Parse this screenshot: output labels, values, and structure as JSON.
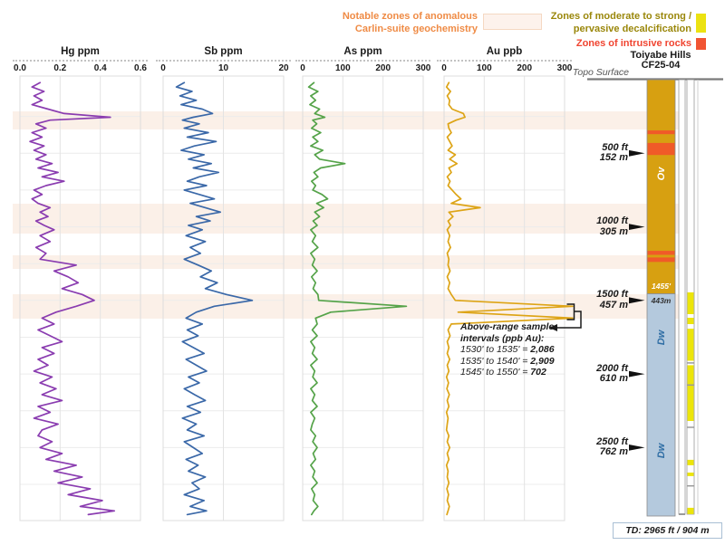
{
  "legend": {
    "carlin": {
      "line1": "Notable zones of anomalous",
      "line2": "Carlin-suite geochemistry",
      "text_color": "#ef8b45",
      "swatch_fill": "#fdf2ec",
      "swatch_border": "#f5d8c2"
    },
    "decalcification": {
      "line1": "Zones of moderate to strong /",
      "line2": "pervasive decalcification",
      "text_color": "#9a870b",
      "swatch_fill": "#ece211"
    },
    "intrusive": {
      "label": "Zones of intrusive rocks",
      "text_color": "#f04430",
      "swatch_fill": "#f15432"
    }
  },
  "hole": {
    "title_line1": "Toiyabe Hills",
    "title_line2": "CF25-04",
    "topo_label": "Topo Surface",
    "td_label": "TD: 2965 ft / 904 m"
  },
  "annotation": {
    "line1": "Above-range sample",
    "line2": "intervals (ppb Au):",
    "entries": [
      {
        "interval": "1530' to 1535' = ",
        "value": "2,086"
      },
      {
        "interval": "1535' to 1540' = ",
        "value": "2,909"
      },
      {
        "interval": "1545' to 1550' = ",
        "value": "702"
      }
    ]
  },
  "depth_markers": [
    {
      "ft": "500 ft",
      "m": "152 m",
      "depth": 500
    },
    {
      "ft": "1000 ft",
      "m": "305 m",
      "depth": 1000
    },
    {
      "ft": "1500 ft",
      "m": "457 m",
      "depth": 1500
    },
    {
      "ft": "2000 ft",
      "m": "610 m",
      "depth": 2000
    },
    {
      "ft": "2500 ft",
      "m": "762 m",
      "depth": 2500
    }
  ],
  "lithology": {
    "units": [
      {
        "code": "Ov",
        "from_ft": 0,
        "to_ft": 1455,
        "color": "#d7a011",
        "label_color": "#ffffff",
        "label_depth": 640
      },
      {
        "code": "Dw",
        "from_ft": 1455,
        "to_ft": 2965,
        "color": "#b4c9dd",
        "label_color": "#2e6da4",
        "label_depth": 1755
      },
      {
        "code": "Dw",
        "from_ft": 1455,
        "to_ft": 2965,
        "color": "#b4c9dd",
        "label_color": "#2e6da4",
        "label_depth": 2520
      }
    ],
    "boundary_label_ft": "1455'",
    "boundary_label_m": "443m",
    "intrusive_intervals_ft": [
      [
        345,
        370
      ],
      [
        430,
        512
      ],
      [
        1163,
        1190
      ],
      [
        1208,
        1238
      ]
    ],
    "intrusive_color": "#f05a28"
  },
  "decal_strip": {
    "yellow_intervals_ft": [
      [
        1445,
        1593
      ],
      [
        1618,
        1661
      ],
      [
        1692,
        1910
      ],
      [
        1940,
        2319
      ],
      [
        2583,
        2620
      ],
      [
        2670,
        2694
      ],
      [
        2909,
        2952
      ]
    ],
    "tick_depths_ft": [
      1925,
      2075,
      2362,
      2760
    ],
    "color": "#ece50a"
  },
  "anomalous_bands_ft": [
    [
      215,
      338
    ],
    [
      843,
      1046
    ],
    [
      1193,
      1286
    ],
    [
      1458,
      1624
    ]
  ],
  "band_color": "#fbf0e8",
  "chart_data": {
    "type": "line",
    "orientation": "vertical-depth-profile",
    "depth_axis": {
      "unit": "ft",
      "min": 0,
      "max": 2965,
      "td_ft": 2965,
      "td_m": 904,
      "gridline_interval_ft": 250
    },
    "sample_depths_ft": [
      20,
      50,
      80,
      110,
      140,
      170,
      200,
      230,
      255,
      275,
      300,
      330,
      360,
      390,
      420,
      450,
      480,
      510,
      540,
      570,
      600,
      630,
      660,
      690,
      720,
      750,
      780,
      810,
      840,
      870,
      900,
      930,
      960,
      990,
      1020,
      1060,
      1100,
      1140,
      1180,
      1220,
      1260,
      1300,
      1340,
      1380,
      1420,
      1460,
      1500,
      1540,
      1580,
      1620,
      1660,
      1700,
      1740,
      1780,
      1820,
      1860,
      1900,
      1940,
      1980,
      2020,
      2060,
      2100,
      2140,
      2180,
      2220,
      2260,
      2300,
      2340,
      2380,
      2420,
      2460,
      2500,
      2540,
      2580,
      2620,
      2660,
      2700,
      2740,
      2780,
      2820,
      2860,
      2900,
      2930,
      2955
    ],
    "panels": [
      {
        "id": "hg",
        "title": "Hg ppm",
        "xlim": [
          0,
          0.6
        ],
        "ticks": [
          0,
          0.2,
          0.4,
          0.6
        ],
        "tick_labels": [
          "0.0",
          "0.2",
          "0.4",
          "0.6"
        ],
        "color": "#8a3cb0",
        "values": [
          0.1,
          0.06,
          0.12,
          0.07,
          0.11,
          0.06,
          0.14,
          0.22,
          0.45,
          0.15,
          0.08,
          0.13,
          0.06,
          0.11,
          0.05,
          0.12,
          0.07,
          0.13,
          0.08,
          0.16,
          0.09,
          0.19,
          0.11,
          0.22,
          0.13,
          0.07,
          0.11,
          0.06,
          0.09,
          0.15,
          0.1,
          0.14,
          0.08,
          0.12,
          0.17,
          0.1,
          0.15,
          0.08,
          0.13,
          0.1,
          0.28,
          0.17,
          0.24,
          0.29,
          0.21,
          0.31,
          0.37,
          0.28,
          0.18,
          0.11,
          0.17,
          0.09,
          0.15,
          0.21,
          0.11,
          0.17,
          0.09,
          0.14,
          0.07,
          0.16,
          0.1,
          0.18,
          0.11,
          0.21,
          0.09,
          0.15,
          0.07,
          0.19,
          0.11,
          0.09,
          0.16,
          0.1,
          0.21,
          0.13,
          0.28,
          0.17,
          0.31,
          0.19,
          0.35,
          0.24,
          0.41,
          0.3,
          0.47,
          0.34
        ]
      },
      {
        "id": "sb",
        "title": "Sb ppm",
        "xlim": [
          0,
          20
        ],
        "ticks": [
          0,
          10,
          20
        ],
        "tick_labels": [
          "0",
          "10",
          "20"
        ],
        "color": "#3a68a8",
        "values": [
          3.5,
          2.2,
          4.8,
          2.8,
          5.5,
          3.0,
          6.5,
          8.2,
          5.0,
          3.2,
          6.0,
          3.5,
          7.5,
          4.0,
          8.8,
          5.2,
          3.0,
          6.8,
          4.2,
          8.0,
          5.0,
          9.2,
          6.0,
          4.0,
          7.2,
          3.5,
          6.0,
          8.5,
          4.5,
          7.0,
          9.5,
          5.5,
          7.8,
          4.2,
          6.5,
          3.8,
          7.0,
          4.5,
          6.2,
          3.5,
          5.8,
          8.0,
          6.2,
          9.0,
          7.0,
          10.5,
          14.8,
          8.5,
          5.5,
          3.8,
          6.5,
          4.0,
          5.8,
          3.2,
          5.0,
          6.8,
          3.8,
          5.5,
          7.2,
          4.2,
          6.0,
          3.5,
          5.2,
          7.0,
          4.0,
          6.2,
          3.2,
          5.5,
          4.0,
          6.8,
          3.5,
          5.0,
          6.5,
          3.8,
          5.8,
          4.2,
          7.0,
          4.8,
          6.0,
          3.5,
          6.8,
          4.5,
          7.2,
          4.0
        ]
      },
      {
        "id": "as",
        "title": "As ppm",
        "xlim": [
          0,
          300
        ],
        "ticks": [
          0,
          100,
          200,
          300
        ],
        "tick_labels": [
          "0",
          "100",
          "200",
          "300"
        ],
        "color": "#55a349",
        "values": [
          28,
          15,
          38,
          20,
          32,
          18,
          42,
          30,
          55,
          25,
          35,
          22,
          45,
          25,
          38,
          20,
          50,
          30,
          42,
          105,
          45,
          28,
          38,
          22,
          32,
          25,
          48,
          62,
          35,
          52,
          30,
          42,
          26,
          36,
          20,
          32,
          24,
          38,
          20,
          30,
          24,
          36,
          22,
          32,
          26,
          38,
          40,
          258,
          70,
          32,
          36,
          24,
          36,
          20,
          30,
          24,
          36,
          20,
          30,
          25,
          36,
          20,
          30,
          24,
          36,
          20,
          30,
          24,
          20,
          32,
          25,
          36,
          26,
          32,
          20,
          30,
          25,
          36,
          22,
          30,
          26,
          38,
          28,
          22
        ]
      },
      {
        "id": "au",
        "title": "Au ppb",
        "xlim": [
          0,
          300
        ],
        "ticks": [
          0,
          100,
          200,
          300
        ],
        "tick_labels": [
          "0",
          "100",
          "200",
          "300"
        ],
        "color": "#dda416",
        "values": [
          12,
          6,
          16,
          8,
          14,
          12,
          20,
          48,
          52,
          30,
          10,
          12,
          18,
          8,
          14,
          20,
          10,
          28,
          14,
          32,
          12,
          18,
          8,
          15,
          10,
          20,
          30,
          42,
          18,
          90,
          12,
          22,
          10,
          16,
          8,
          14,
          10,
          16,
          8,
          12,
          10,
          15,
          8,
          14,
          10,
          18,
          28,
          2909,
          35,
          702,
          18,
          10,
          15,
          8,
          12,
          8,
          14,
          8,
          12,
          6,
          11,
          7,
          13,
          8,
          12,
          6,
          10,
          8,
          6,
          12,
          8,
          14,
          8,
          12,
          6,
          10,
          8,
          12,
          7,
          11,
          8,
          13,
          10,
          7
        ]
      }
    ]
  }
}
